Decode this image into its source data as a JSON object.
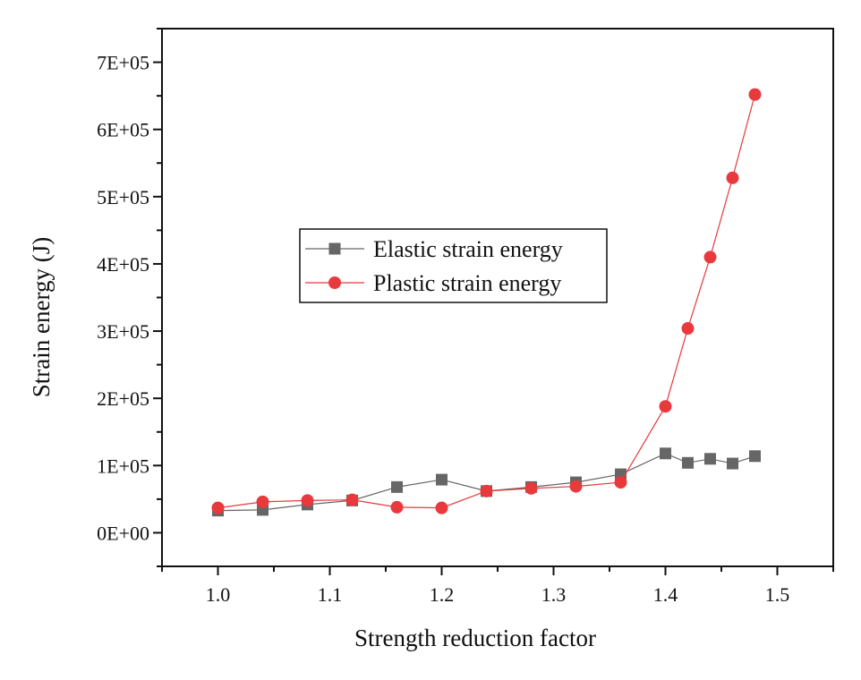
{
  "chart_data": {
    "type": "line",
    "xlabel": "Strength reduction factor",
    "ylabel": "Strain energy (J)",
    "xlim": [
      0.95,
      1.55
    ],
    "ylim": [
      -50000,
      750000
    ],
    "x_ticks": [
      1.0,
      1.1,
      1.2,
      1.3,
      1.4,
      1.5
    ],
    "x_tick_labels": [
      "1.0",
      "1.1",
      "1.2",
      "1.3",
      "1.4",
      "1.5"
    ],
    "y_ticks": [
      0,
      100000,
      200000,
      300000,
      400000,
      500000,
      600000,
      700000
    ],
    "y_tick_labels": [
      "0E+00",
      "1E+05",
      "2E+05",
      "3E+05",
      "4E+05",
      "5E+05",
      "6E+05",
      "7E+05"
    ],
    "grid": false,
    "legend_position": "center-left",
    "x": [
      1.0,
      1.04,
      1.08,
      1.12,
      1.16,
      1.2,
      1.24,
      1.28,
      1.32,
      1.36,
      1.4,
      1.42,
      1.44,
      1.46,
      1.48
    ],
    "series": [
      {
        "name": "Elastic strain energy",
        "marker": "square",
        "color": "#666666",
        "values": [
          33000,
          34000,
          42000,
          48000,
          68000,
          79000,
          62000,
          68000,
          75000,
          87000,
          118000,
          104000,
          110000,
          103000,
          114000
        ]
      },
      {
        "name": "Plastic strain energy",
        "marker": "circle",
        "color": "#e8393c",
        "values": [
          37000,
          46000,
          48000,
          49000,
          38000,
          37000,
          62000,
          66000,
          69000,
          75000,
          188000,
          304000,
          410000,
          528000,
          652000
        ]
      }
    ]
  }
}
